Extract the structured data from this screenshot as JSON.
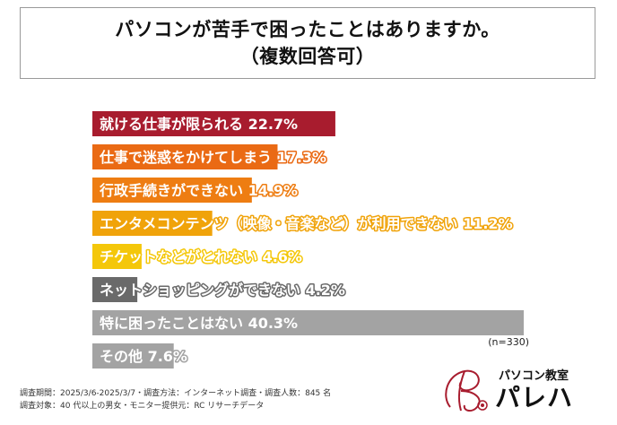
{
  "title": {
    "line1": "パソコンが苦手で困ったことはありますか。",
    "line2": "（複数回答可）"
  },
  "chart_data": {
    "type": "bar",
    "orientation": "horizontal",
    "categories": [
      "就ける仕事が限られる",
      "仕事で迷惑をかけてしまう",
      "行政手続きができない",
      "エンタメコンテンツ（映像・音楽など）が利用できない",
      "チケットなどがとれない",
      "ネットショッピングができない",
      "特に困ったことはない",
      "その他"
    ],
    "values": [
      22.7,
      17.3,
      14.9,
      11.2,
      4.6,
      4.2,
      40.3,
      7.6
    ],
    "value_labels": [
      "22.7%",
      "17.3%",
      "14.9%",
      "11.2%",
      "4.6%",
      "4.2%",
      "40.3%",
      "7.6%"
    ],
    "colors": [
      "#a81c2e",
      "#ea6a14",
      "#ee7d12",
      "#f0a30a",
      "#f4c70a",
      "#6a6a6a",
      "#a3a3a3",
      "#a3a3a3"
    ],
    "xlim": [
      0,
      40.3
    ]
  },
  "sample_note": "(n=330)",
  "footer": {
    "line1": "調査期間：2025/3/6-2025/3/7・調査方法：インターネット調査・調査人数：845 名",
    "line2": "調査対象：40 代以上の男女・モニター提供元：RC リサーチデータ"
  },
  "logo": {
    "sub": "パソコン教室",
    "main": "パレハ",
    "accent": "#a81c2e"
  }
}
